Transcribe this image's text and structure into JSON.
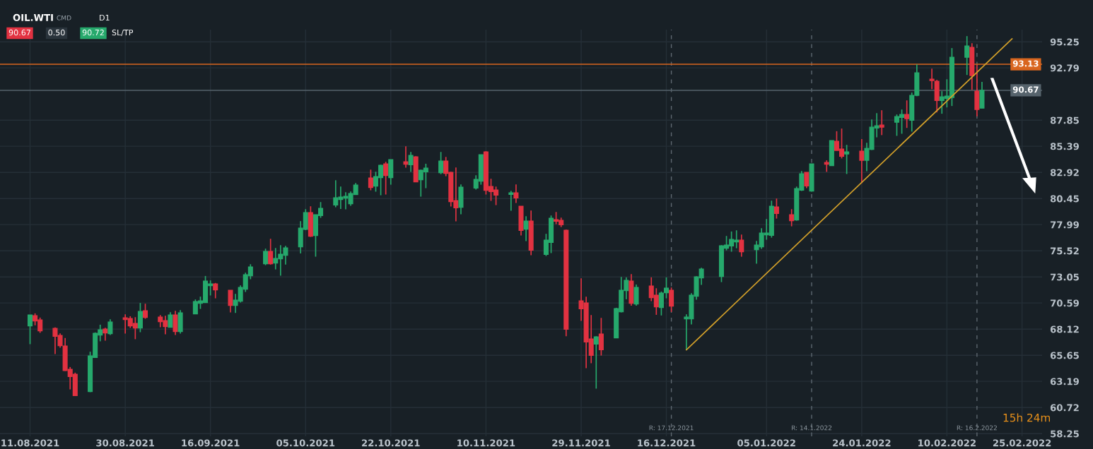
{
  "chart_data": {
    "type": "candlestick",
    "title": "OIL.WTI",
    "annotations": [
      "CMD",
      "D1",
      "90.67",
      "0.50",
      "90.72",
      "SL/TP",
      "15h 24m"
    ],
    "series": [
      {
        "colors": [
          "#26a96c",
          "#e23241",
          "#e23241",
          "#e23241",
          "#e23241",
          "#e23241",
          "#e23241",
          "#e23241",
          "#26a96c",
          "#26a96c",
          "#26a96c",
          "#e23241",
          "#26a96c",
          "#e23241",
          "#e23241",
          "#e23241",
          "#26a96c",
          "#e23241",
          "#e23241",
          "#e23241",
          "#26a96c",
          "#e23241",
          "#26a96c",
          "#26a96c",
          "#26a96c",
          "#26a96c",
          "#26a96c",
          "#e23241",
          "#e23241",
          "#26a96c",
          "#26a96c",
          "#26a96c",
          "#26a96c",
          "#26a96c",
          "#e23241",
          "#26a96c",
          "#26a96c",
          "#26a96c",
          "#26a96c",
          "#26a96c",
          "#e23241",
          "#26a96c",
          "#26a96c",
          "#26a96c",
          "#26a96c",
          "#26a96c",
          "#26a96c",
          "#26a96c",
          "#e23241",
          "#26a96c",
          "#26a96c",
          "#e23241",
          "#26a96c",
          "#e23241",
          "#26a96c",
          "#e23241",
          "#26a96c",
          "#26a96c",
          "#26a96c",
          "#e23241",
          "#e23241",
          "#e23241",
          "#26a96c",
          "#26a96c",
          "#26a96c",
          "#e23241",
          "#e23241",
          "#e23241",
          "#26a96c",
          "#e23241",
          "#e23241",
          "#26a96c",
          "#e23241",
          "#26a96c",
          "#26a96c",
          "#e23241",
          "#e23241",
          "#e23241",
          "#e23241",
          "#e23241",
          "#e23241",
          "#26a96c",
          "#e23241",
          "#26a96c",
          "#26a96c",
          "#26a96c",
          "#e23241",
          "#26a96c",
          "#e23241",
          "#e23241",
          "#26a96c",
          "#26a96c",
          "#e23241",
          "#26a96c",
          "#26a96c",
          "#26a96c",
          "#26a96c",
          "#26a96c",
          "#26a96c",
          "#26a96c",
          "#26a96c",
          "#e23241",
          "#26a96c",
          "#26a96c",
          "#26a96c",
          "#26a96c",
          "#e23241",
          "#e23241",
          "#26a96c",
          "#26a96c",
          "#e23241",
          "#26a96c",
          "#e23241",
          "#26a96c",
          "#e23241",
          "#e23241",
          "#26a96c",
          "#e23241",
          "#26a96c",
          "#26a96c",
          "#26a96c",
          "#e23241",
          "#26a96c",
          "#26a96c",
          "#e23241",
          "#26a96c",
          "#26a96c",
          "#e23241",
          "#e23241",
          "#26a96c",
          "#26a96c",
          "#26a96c",
          "#26a96c",
          "#e23241",
          "#e23241",
          "#26a96c"
        ],
        "x": [
          "2021-08-11",
          "2021-08-12",
          "2021-08-13",
          "2021-08-16",
          "2021-08-17",
          "2021-08-18",
          "2021-08-19",
          "2021-08-20",
          "2021-08-23",
          "2021-08-24",
          "2021-08-25",
          "2021-08-26",
          "2021-08-27",
          "2021-08-30",
          "2021-08-31",
          "2021-09-01",
          "2021-09-02",
          "2021-09-03",
          "2021-09-06",
          "2021-09-07",
          "2021-09-08",
          "2021-09-09",
          "2021-09-10",
          "2021-09-13",
          "2021-09-14",
          "2021-09-15",
          "2021-09-16",
          "2021-09-17",
          "2021-09-20",
          "2021-09-21",
          "2021-09-22",
          "2021-09-23",
          "2021-09-24",
          "2021-09-27",
          "2021-09-28",
          "2021-09-29",
          "2021-09-30",
          "2021-10-01",
          "2021-10-04",
          "2021-10-05",
          "2021-10-06",
          "2021-10-07",
          "2021-10-08",
          "2021-10-11",
          "2021-10-12",
          "2021-10-13",
          "2021-10-14",
          "2021-10-15",
          "2021-10-18",
          "2021-10-19",
          "2021-10-20",
          "2021-10-21",
          "2021-10-22",
          "2021-10-25",
          "2021-10-26",
          "2021-10-27",
          "2021-10-28",
          "2021-10-29",
          "2021-11-01",
          "2021-11-02",
          "2021-11-03",
          "2021-11-04",
          "2021-11-05",
          "2021-11-08",
          "2021-11-09",
          "2021-11-10",
          "2021-11-11",
          "2021-11-12",
          "2021-11-15",
          "2021-11-16",
          "2021-11-17",
          "2021-11-18",
          "2021-11-19",
          "2021-11-22",
          "2021-11-23",
          "2021-11-24",
          "2021-11-25",
          "2021-11-26",
          "2021-11-29",
          "2021-11-30",
          "2021-12-01",
          "2021-12-02",
          "2021-12-03",
          "2021-12-06",
          "2021-12-07",
          "2021-12-08",
          "2021-12-09",
          "2021-12-10",
          "2021-12-13",
          "2021-12-14",
          "2021-12-15",
          "2021-12-16",
          "2021-12-17",
          "2021-12-20",
          "2021-12-21",
          "2021-12-22",
          "2021-12-23",
          "2021-12-27",
          "2021-12-28",
          "2021-12-29",
          "2021-12-30",
          "2021-12-31",
          "2022-01-03",
          "2022-01-04",
          "2022-01-05",
          "2022-01-06",
          "2022-01-07",
          "2022-01-10",
          "2022-01-11",
          "2022-01-12",
          "2022-01-13",
          "2022-01-14",
          "2022-01-17",
          "2022-01-18",
          "2022-01-19",
          "2022-01-20",
          "2022-01-21",
          "2022-01-24",
          "2022-01-25",
          "2022-01-26",
          "2022-01-27",
          "2022-01-28",
          "2022-01-31",
          "2022-02-01",
          "2022-02-02",
          "2022-02-03",
          "2022-02-04",
          "2022-02-07",
          "2022-02-08",
          "2022-02-09",
          "2022-02-10",
          "2022-02-11",
          "2022-02-14",
          "2022-02-15",
          "2022-02-16",
          "2022-02-17"
        ],
        "ohlc": [
          [
            68.43,
            69.45,
            66.7,
            69.45
          ],
          [
            69.39,
            69.61,
            68.48,
            68.9
          ],
          [
            68.99,
            69.21,
            67.77,
            67.97
          ],
          [
            68.19,
            68.28,
            65.77,
            67.45
          ],
          [
            67.52,
            67.72,
            66.37,
            66.57
          ],
          [
            66.52,
            67.28,
            64.17,
            64.21
          ],
          [
            64.32,
            64.54,
            62.43,
            63.65
          ],
          [
            63.85,
            64.01,
            61.85,
            61.85
          ],
          [
            62.23,
            65.99,
            62.17,
            65.59
          ],
          [
            65.45,
            67.81,
            65.45,
            67.72
          ],
          [
            67.57,
            68.54,
            66.97,
            68.05
          ],
          [
            68.12,
            68.25,
            67.03,
            67.77
          ],
          [
            67.7,
            69.05,
            67.57,
            68.79
          ],
          [
            69.19,
            69.52,
            67.7,
            69.03
          ],
          [
            69.12,
            69.34,
            68.23,
            68.43
          ],
          [
            68.65,
            69.25,
            67.17,
            68.23
          ],
          [
            68.23,
            70.59,
            67.83,
            69.79
          ],
          [
            69.85,
            70.52,
            69.1,
            69.23
          ],
          [
            69.25,
            69.45,
            68.3,
            68.83
          ],
          [
            68.92,
            69.39,
            67.63,
            68.37
          ],
          [
            68.3,
            69.72,
            68.3,
            69.45
          ],
          [
            69.45,
            69.85,
            67.57,
            67.9
          ],
          [
            67.9,
            69.92,
            67.7,
            69.65
          ],
          [
            69.57,
            70.92,
            69.57,
            70.72
          ],
          [
            70.57,
            71.19,
            70.03,
            70.79
          ],
          [
            70.63,
            73.14,
            70.63,
            72.65
          ],
          [
            72.23,
            72.72,
            71.3,
            72.39
          ],
          [
            72.39,
            72.48,
            71.03,
            71.83
          ],
          [
            71.79,
            71.79,
            69.7,
            70.37
          ],
          [
            70.36,
            71.45,
            69.65,
            70.85
          ],
          [
            70.76,
            72.25,
            70.63,
            72.05
          ],
          [
            71.9,
            73.45,
            71.63,
            73.25
          ],
          [
            73.16,
            74.25,
            72.83,
            73.98
          ],
          [
            74.3,
            75.72,
            74.16,
            75.45
          ],
          [
            75.45,
            76.65,
            74.21,
            74.3
          ],
          [
            74.36,
            75.78,
            73.76,
            74.78
          ],
          [
            74.76,
            76.05,
            73.16,
            75.18
          ],
          [
            75.1,
            75.98,
            74.21,
            75.78
          ],
          [
            75.9,
            78.32,
            75.27,
            77.65
          ],
          [
            77.54,
            79.45,
            77.47,
            79.12
          ],
          [
            79.12,
            79.72,
            76.83,
            76.9
          ],
          [
            76.96,
            78.92,
            74.96,
            78.92
          ],
          [
            78.85,
            80.12,
            78.63,
            79.52
          ],
          [
            79.85,
            82.18,
            79.63,
            80.52
          ],
          [
            80.36,
            81.58,
            79.47,
            80.58
          ],
          [
            80.5,
            81.05,
            79.43,
            80.65
          ],
          [
            79.96,
            81.12,
            79.76,
            80.92
          ],
          [
            80.83,
            81.92,
            80.83,
            81.72
          ],
          [
            82.38,
            83.18,
            81.23,
            81.5
          ],
          [
            81.63,
            82.98,
            81.1,
            82.52
          ],
          [
            82.43,
            83.65,
            80.76,
            83.58
          ],
          [
            83.72,
            83.92,
            80.83,
            82.63
          ],
          [
            82.43,
            84.12,
            81.76,
            84.12
          ],
          [
            83.92,
            85.38,
            83.36,
            83.7
          ],
          [
            83.65,
            84.85,
            82.96,
            84.52
          ],
          [
            84.38,
            84.45,
            82.03,
            82.03
          ],
          [
            82.23,
            83.18,
            80.63,
            83.12
          ],
          [
            82.98,
            83.74,
            81.43,
            83.32
          ],
          [
            82.9,
            84.85,
            82.76,
            83.98
          ],
          [
            83.98,
            84.38,
            82.56,
            82.83
          ],
          [
            82.92,
            82.98,
            79.7,
            80.16
          ],
          [
            80.25,
            83.38,
            78.3,
            79.58
          ],
          [
            79.63,
            81.78,
            78.96,
            81.52
          ],
          [
            81.45,
            82.65,
            81.3,
            82.25
          ],
          [
            82.1,
            84.58,
            81.76,
            84.58
          ],
          [
            84.85,
            84.92,
            80.83,
            81.23
          ],
          [
            81.58,
            82.32,
            80.23,
            81.12
          ],
          [
            81.25,
            81.58,
            79.83,
            80.78
          ],
          [
            80.85,
            81.18,
            79.3,
            80.98
          ],
          [
            80.98,
            81.78,
            80.03,
            80.52
          ],
          [
            79.72,
            79.72,
            76.96,
            77.45
          ],
          [
            77.56,
            78.78,
            76.43,
            78.32
          ],
          [
            78.32,
            79.32,
            75.1,
            75.58
          ],
          [
            75.18,
            77.12,
            75.03,
            76.52
          ],
          [
            76.32,
            78.85,
            75.3,
            78.58
          ],
          [
            78.45,
            79.18,
            78.03,
            78.32
          ],
          [
            78.38,
            78.65,
            77.76,
            77.98
          ],
          [
            77.45,
            77.52,
            67.45,
            68.12
          ],
          [
            70.78,
            72.92,
            68.9,
            70.05
          ],
          [
            70.58,
            71.18,
            64.43,
            66.92
          ],
          [
            67.18,
            69.45,
            64.9,
            65.65
          ],
          [
            66.72,
            67.45,
            62.5,
            67.38
          ],
          [
            67.65,
            69.18,
            65.63,
            66.18
          ],
          [
            67.3,
            70.14,
            67.3,
            70.05
          ],
          [
            69.76,
            73.05,
            69.7,
            71.78
          ],
          [
            71.76,
            73.01,
            70.94,
            72.72
          ],
          [
            72.65,
            73.32,
            70.34,
            70.56
          ],
          [
            70.5,
            72.34,
            70.34,
            72.05
          ],
          [
            72.18,
            73.01,
            70.76,
            71.1
          ],
          [
            71.32,
            71.98,
            69.47,
            70.23
          ],
          [
            70.16,
            71.67,
            69.41,
            71.52
          ],
          [
            71.56,
            73.01,
            71.03,
            71.98
          ],
          [
            71.78,
            72.05,
            69.74,
            70.3
          ],
          [
            69.1,
            69.52,
            66.16,
            69.26
          ],
          [
            69.1,
            71.52,
            68.56,
            71.32
          ],
          [
            71.23,
            73.12,
            70.9,
            73.05
          ],
          [
            72.96,
            73.92,
            72.3,
            73.78
          ],
          [
            73.1,
            76.05,
            72.56,
            75.98
          ],
          [
            75.76,
            76.92,
            75.56,
            76.05
          ],
          [
            75.98,
            77.34,
            75.43,
            76.58
          ],
          [
            76.36,
            77.45,
            75.76,
            76.52
          ],
          [
            76.52,
            77.05,
            74.96,
            75.43
          ],
          [
            75.63,
            76.45,
            74.3,
            76.05
          ],
          [
            75.9,
            77.65,
            75.7,
            77.18
          ],
          [
            77.03,
            78.52,
            76.56,
            77.18
          ],
          [
            76.98,
            80.25,
            76.76,
            79.72
          ],
          [
            79.65,
            80.45,
            78.56,
            79.05
          ],
          [
            78.92,
            79.45,
            77.83,
            78.36
          ],
          [
            78.43,
            81.58,
            78.36,
            81.38
          ],
          [
            81.25,
            83.05,
            81.16,
            82.78
          ],
          [
            82.92,
            82.92,
            81.44,
            81.64
          ],
          [
            81.17,
            83.72,
            81.1,
            83.72
          ],
          [
            83.86,
            84.06,
            82.97,
            83.7
          ],
          [
            83.57,
            85.92,
            83.57,
            85.92
          ],
          [
            85.86,
            86.81,
            84.99,
            84.99
          ],
          [
            85.12,
            87.06,
            84.24,
            84.44
          ],
          [
            84.66,
            85.52,
            82.77,
            84.86
          ],
          [
            84.92,
            86.06,
            81.9,
            84.06
          ],
          [
            84.06,
            85.72,
            83.04,
            85.19
          ],
          [
            85.1,
            87.92,
            85.04,
            87.19
          ],
          [
            87.12,
            88.52,
            86.24,
            87.32
          ],
          [
            87.39,
            88.79,
            86.44,
            87.19
          ],
          [
            87.66,
            88.39,
            86.37,
            88.19
          ],
          [
            88.12,
            88.86,
            86.57,
            88.39
          ],
          [
            88.39,
            89.72,
            87.12,
            87.99
          ],
          [
            87.84,
            90.46,
            86.77,
            90.19
          ],
          [
            90.19,
            93.12,
            90.12,
            92.32
          ],
          [
            91.72,
            92.72,
            90.79,
            91.59
          ],
          [
            91.52,
            91.66,
            88.59,
            89.72
          ],
          [
            89.72,
            90.59,
            88.46,
            90.06
          ],
          [
            89.92,
            91.72,
            89.06,
            90.12
          ],
          [
            89.99,
            94.66,
            89.19,
            93.79
          ],
          [
            93.79,
            95.79,
            92.12,
            94.86
          ],
          [
            94.72,
            95.12,
            90.72,
            92.06
          ],
          [
            90.59,
            93.06,
            88.21,
            88.86
          ],
          [
            88.99,
            91.46,
            88.99,
            90.67
          ]
        ]
      },
      {
        "type": "line",
        "color": "#d4a12a",
        "x": [
          "2021-12-20",
          "2022-02-23"
        ],
        "values": [
          66.16,
          95.53
        ]
      }
    ],
    "xlim": [
      "2021-08-05",
      "2022-03-01"
    ],
    "xticks": [
      {
        "value": "2021-08-11",
        "label": "11.08.2021"
      },
      {
        "value": "2021-08-30",
        "label": "30.08.2021"
      },
      {
        "value": "2021-09-16",
        "label": "16.09.2021"
      },
      {
        "value": "2021-10-05",
        "label": "05.10.2021"
      },
      {
        "value": "2021-10-22",
        "label": "22.10.2021"
      },
      {
        "value": "2021-11-10",
        "label": "10.11.2021"
      },
      {
        "value": "2021-11-29",
        "label": "29.11.2021"
      },
      {
        "value": "2021-12-16",
        "label": "16.12.2021"
      },
      {
        "value": "2022-01-05",
        "label": "05.01.2022"
      },
      {
        "value": "2022-01-24",
        "label": "24.01.2022"
      },
      {
        "value": "2022-02-10",
        "label": "10.02.2022"
      },
      {
        "value": "2022-02-25",
        "label": "25.02.2022"
      }
    ],
    "ylim": [
      58.0,
      96.4
    ],
    "yticks": [
      95.25,
      92.79,
      87.85,
      85.39,
      82.92,
      80.45,
      77.99,
      75.52,
      73.05,
      70.59,
      68.12,
      65.65,
      63.19,
      60.72,
      58.25
    ],
    "ref_lines": [
      {
        "axis": "y",
        "value": 93.13,
        "label": "93.13",
        "color": "#d9661f"
      },
      {
        "axis": "y",
        "value": 90.67,
        "label": "90.67",
        "color": "#56636c"
      },
      {
        "axis": "x",
        "value": "2021-12-17",
        "label": "R: 17.12.2021",
        "color": "#5e6870",
        "line_style": "dashed"
      },
      {
        "axis": "x",
        "value": "2022-01-14",
        "label": "R: 14.1.2022",
        "color": "#5e6870",
        "line_style": "dashed"
      },
      {
        "axis": "x",
        "value": "2022-02-16",
        "label": "R: 16.2.2022",
        "color": "#5e6870",
        "line_style": "dashed"
      }
    ],
    "grid": true
  }
}
